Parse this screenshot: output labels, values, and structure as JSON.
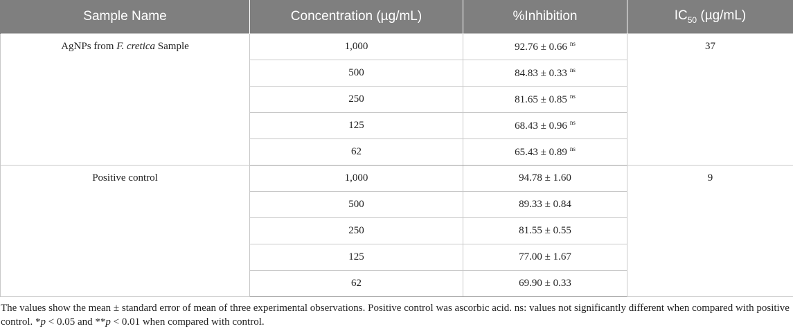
{
  "headers": {
    "sample_name": "Sample Name",
    "concentration": "Concentration (µg/mL)",
    "inhibition": "%Inhibition",
    "ic50_prefix": "IC",
    "ic50_sub": "50",
    "ic50_suffix": " (µg/mL)"
  },
  "groups": [
    {
      "name_pre": "AgNPs from ",
      "name_italic": "F. cretica",
      "name_post": " Sample",
      "ic50": "37",
      "rows": [
        {
          "conc": "1,000",
          "inhib": "92.76 ± 0.66",
          "mark": "ns"
        },
        {
          "conc": "500",
          "inhib": "84.83 ± 0.33",
          "mark": "ns"
        },
        {
          "conc": "250",
          "inhib": "81.65 ± 0.85",
          "mark": "ns"
        },
        {
          "conc": "125",
          "inhib": "68.43 ± 0.96",
          "mark": "ns"
        },
        {
          "conc": "62",
          "inhib": "65.43 ± 0.89",
          "mark": "ns"
        }
      ]
    },
    {
      "name_pre": "Positive control",
      "name_italic": "",
      "name_post": "",
      "ic50": "9",
      "rows": [
        {
          "conc": "1,000",
          "inhib": "94.78 ± 1.60",
          "mark": ""
        },
        {
          "conc": "500",
          "inhib": "89.33 ± 0.84",
          "mark": ""
        },
        {
          "conc": "250",
          "inhib": "81.55 ± 0.55",
          "mark": ""
        },
        {
          "conc": "125",
          "inhib": "77.00 ± 1.67",
          "mark": ""
        },
        {
          "conc": "62",
          "inhib": "69.90 ± 0.33",
          "mark": ""
        }
      ]
    }
  ],
  "footnote": {
    "part1": "The values show the mean ± standard error of mean of three experimental observations. Positive control was ascorbic acid. ns: values not significantly different when compared with positive control. *",
    "p1": "p",
    "part2": " < 0.05 and **",
    "p2": "p",
    "part3": " < 0.01 when compared with control."
  }
}
